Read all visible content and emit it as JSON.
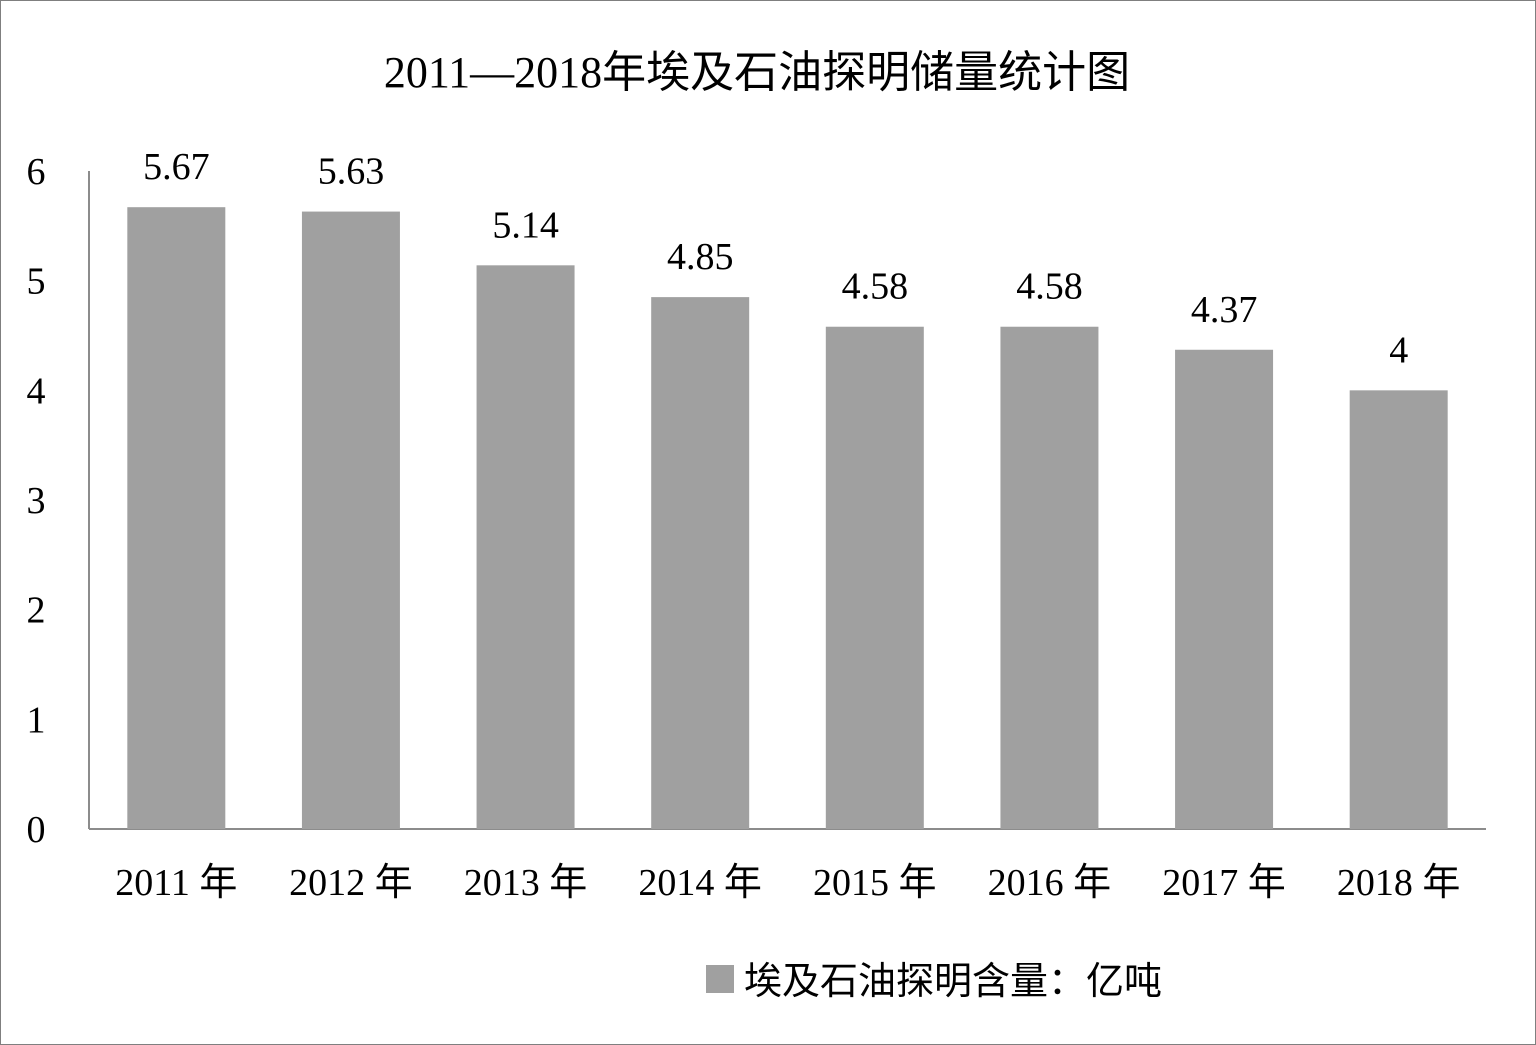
{
  "chart_data": {
    "type": "bar",
    "title": "2011—2018年埃及石油探明储量统计图",
    "categories": [
      "2011 年",
      "2012 年",
      "2013 年",
      "2014 年",
      "2015 年",
      "2016 年",
      "2017 年",
      "2018 年"
    ],
    "series": [
      {
        "name": "埃及石油探明含量：亿吨",
        "values": [
          5.67,
          5.63,
          5.14,
          4.85,
          4.58,
          4.58,
          4.37,
          4
        ]
      }
    ],
    "data_labels": [
      "5.67",
      "5.63",
      "5.14",
      "4.85",
      "4.58",
      "4.58",
      "4.37",
      "4"
    ],
    "yticks": [
      "0",
      "1",
      "2",
      "3",
      "4",
      "5",
      "6"
    ],
    "ylim": [
      0,
      6
    ],
    "xlabel": "",
    "ylabel": "",
    "grid": false,
    "legend_position": "bottom",
    "colors": {
      "bar": "#a0a0a0",
      "axis": "#8c8c8c",
      "text": "#000000",
      "border": "#7f7f7f"
    }
  }
}
